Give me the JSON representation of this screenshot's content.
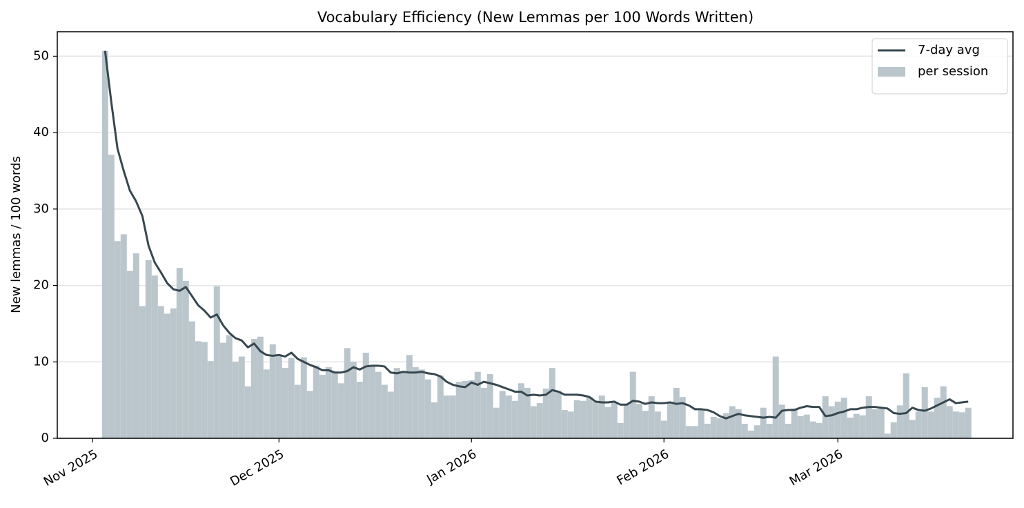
{
  "chart_data": {
    "type": "bar-line",
    "title": "Vocabulary Efficiency (New Lemmas per 100 Words Written)",
    "y_label": "New lemmas / 100 words",
    "x": [
      2,
      3,
      4,
      5,
      6,
      7,
      8,
      9,
      10,
      11,
      12,
      13,
      14,
      15,
      16,
      17,
      18,
      19,
      20,
      21,
      22,
      23,
      24,
      25,
      26,
      27,
      28,
      29,
      30,
      31,
      32,
      33,
      34,
      35,
      36,
      37,
      38,
      39,
      40,
      41,
      42,
      43,
      44,
      45,
      46,
      47,
      48,
      49,
      50,
      51,
      52,
      53,
      54,
      55,
      56,
      57,
      58,
      59,
      60,
      61,
      62,
      63,
      64,
      65,
      66,
      67,
      68,
      69,
      70,
      71,
      72,
      73,
      74,
      75,
      76,
      77,
      78,
      79,
      80,
      81,
      82,
      83,
      84,
      85,
      86,
      87,
      88,
      89,
      90,
      91,
      92,
      93,
      94,
      95,
      96,
      97,
      98,
      99,
      100,
      101,
      102,
      103,
      104,
      105,
      106,
      107,
      108,
      109,
      110,
      111,
      112,
      113,
      114,
      115,
      116,
      117,
      118,
      119,
      120,
      121,
      122,
      123,
      124,
      125,
      126,
      127,
      128,
      129,
      130,
      131,
      132,
      133,
      134,
      135,
      136,
      137,
      138,
      139,
      140,
      141
    ],
    "series": [
      {
        "name": "7-day avg",
        "kind": "line",
        "color": "#37474f",
        "values": [
          50.7,
          44.0,
          37.9,
          35.0,
          32.4,
          31.0,
          29.1,
          25.2,
          23.0,
          21.7,
          20.3,
          19.5,
          19.3,
          19.8,
          18.6,
          17.4,
          16.7,
          15.8,
          16.2,
          14.8,
          13.8,
          13.1,
          12.8,
          11.9,
          12.4,
          11.4,
          10.9,
          10.8,
          10.9,
          10.7,
          11.2,
          10.4,
          10.0,
          9.6,
          9.3,
          8.9,
          8.9,
          8.6,
          8.6,
          8.8,
          9.3,
          9.0,
          9.4,
          9.5,
          9.5,
          9.4,
          8.6,
          8.5,
          8.7,
          8.6,
          8.6,
          8.7,
          8.5,
          8.4,
          8.1,
          7.4,
          7.0,
          6.8,
          6.7,
          7.3,
          7.0,
          7.4,
          7.2,
          7.0,
          6.7,
          6.4,
          6.1,
          6.1,
          5.6,
          5.7,
          5.6,
          5.7,
          6.3,
          6.1,
          5.7,
          5.7,
          5.7,
          5.6,
          5.4,
          4.8,
          4.7,
          4.7,
          4.8,
          4.4,
          4.4,
          4.9,
          4.8,
          4.5,
          4.7,
          4.6,
          4.6,
          4.7,
          4.5,
          4.6,
          4.3,
          3.8,
          3.8,
          3.7,
          3.4,
          2.9,
          2.6,
          2.9,
          3.2,
          3.0,
          2.9,
          2.8,
          2.7,
          2.8,
          2.7,
          3.6,
          3.7,
          3.7,
          4.0,
          4.2,
          4.1,
          4.1,
          2.9,
          3.0,
          3.3,
          3.5,
          3.8,
          3.8,
          4.0,
          4.1,
          4.1,
          4.0,
          3.9,
          3.3,
          3.2,
          3.3,
          4.0,
          3.7,
          3.6,
          3.9,
          4.3,
          4.7,
          5.1,
          4.6,
          4.7,
          4.8
        ]
      },
      {
        "name": "per session",
        "kind": "bar",
        "color": "#bac6cc",
        "values": [
          50.7,
          37.1,
          25.8,
          26.7,
          21.9,
          24.2,
          17.3,
          23.3,
          21.3,
          17.3,
          16.3,
          17.0,
          22.3,
          20.6,
          15.3,
          12.7,
          12.6,
          10.1,
          19.9,
          12.5,
          13.5,
          10.0,
          10.7,
          6.8,
          13.0,
          13.3,
          9.0,
          12.3,
          11.0,
          9.2,
          10.5,
          7.0,
          10.6,
          6.2,
          9.5,
          8.3,
          9.3,
          8.6,
          7.2,
          11.8,
          10.0,
          7.4,
          11.2,
          9.6,
          8.7,
          7.0,
          6.1,
          9.2,
          8.6,
          10.9,
          9.3,
          9.0,
          7.7,
          4.7,
          8.2,
          5.6,
          5.6,
          7.4,
          7.5,
          7.6,
          8.7,
          6.6,
          8.4,
          4.0,
          6.2,
          5.6,
          4.9,
          7.2,
          6.6,
          4.2,
          4.6,
          6.5,
          9.2,
          6.2,
          3.7,
          3.5,
          5.0,
          4.9,
          5.4,
          4.8,
          5.6,
          4.1,
          4.8,
          2.0,
          4.5,
          8.7,
          4.5,
          3.6,
          5.5,
          3.5,
          2.3,
          4.8,
          6.6,
          5.4,
          1.6,
          1.6,
          3.8,
          1.9,
          2.8,
          2.6,
          3.3,
          4.2,
          3.8,
          1.9,
          1.0,
          1.7,
          4.0,
          1.9,
          10.7,
          4.4,
          1.9,
          3.9,
          2.9,
          3.1,
          2.2,
          2.0,
          5.5,
          4.2,
          4.8,
          5.3,
          2.7,
          3.2,
          3.0,
          5.5,
          3.8,
          3.9,
          0.6,
          2.1,
          4.3,
          8.5,
          2.4,
          3.5,
          6.7,
          3.5,
          5.3,
          6.8,
          4.2,
          3.5,
          3.4,
          4.0
        ]
      }
    ],
    "xlim": [
      -5.7,
      148.2
    ],
    "xticks": [
      {
        "value": 0,
        "label": "Nov 2025"
      },
      {
        "value": 30,
        "label": "Dec 2025"
      },
      {
        "value": 61,
        "label": "Jan 2026"
      },
      {
        "value": 92,
        "label": "Feb 2026"
      },
      {
        "value": 120,
        "label": "Mar 2026"
      }
    ],
    "ylim": [
      0,
      53.2
    ],
    "yticks": [
      0,
      10,
      20,
      30,
      40,
      50
    ],
    "grid": true,
    "legend": "upper right"
  }
}
